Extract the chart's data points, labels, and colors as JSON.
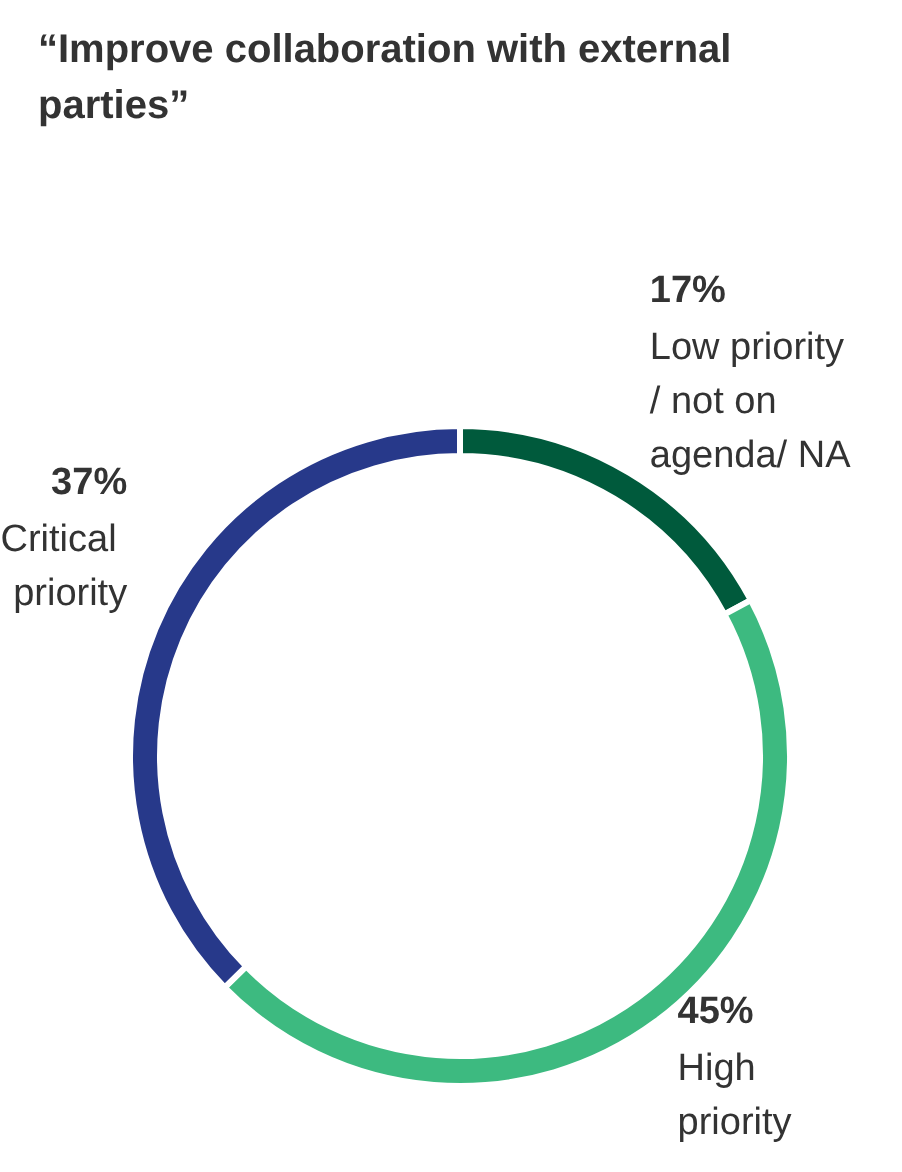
{
  "chart_data": {
    "type": "donut",
    "title": "“Improve collaboration with external parties”",
    "categories": [
      "Low priority/ not on agenda/ NA",
      "High priority",
      "Critical priority"
    ],
    "values": [
      17,
      45,
      37
    ],
    "value_labels": [
      "17%",
      "45%",
      "37%"
    ],
    "colors": [
      "#005a3c",
      "#3dba80",
      "#27398a"
    ],
    "legend": false
  }
}
